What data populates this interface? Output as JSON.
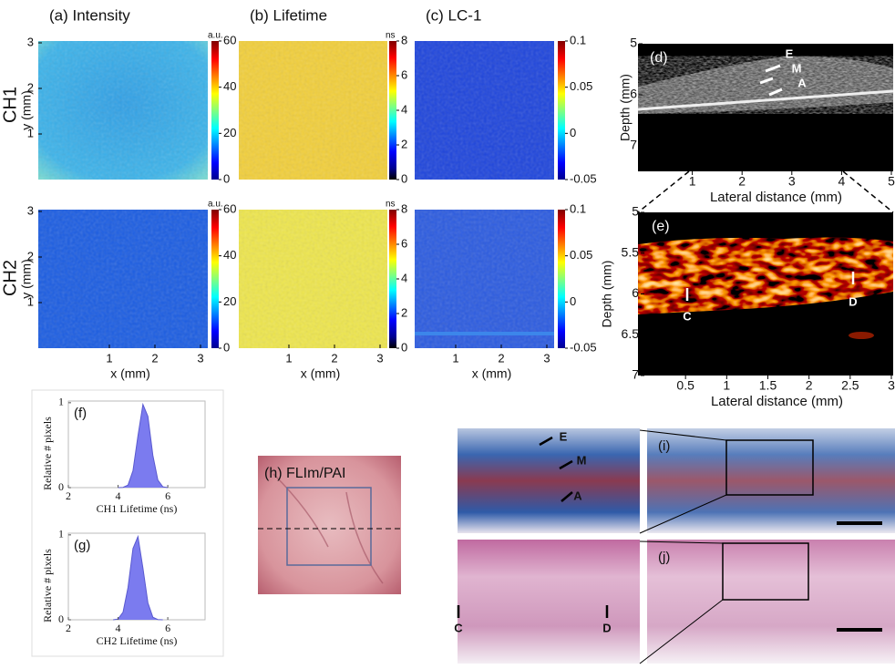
{
  "row_labels": [
    "CH1",
    "CH2"
  ],
  "maps": {
    "xlabel": "x (mm)",
    "ylabel": "y (mm)",
    "ticks": [
      1,
      2,
      3
    ],
    "panels": [
      {
        "title": "(a) Intensity",
        "unit": "a.u.",
        "clim": [
          0,
          60
        ],
        "cticks": [
          0,
          20,
          40,
          60
        ]
      },
      {
        "title": "(b) Lifetime",
        "unit": "ns",
        "clim": [
          0,
          8
        ],
        "cticks": [
          0,
          2,
          4,
          6,
          8
        ]
      },
      {
        "title": "(c) LC-1",
        "clim": [
          -0.05,
          0.1
        ],
        "cticks": [
          -0.05,
          0,
          0.05,
          0.1
        ]
      }
    ]
  },
  "ultrasound": {
    "panel": "(d)",
    "xlabel": "Lateral distance (mm)",
    "ylabel": "Depth (mm)",
    "xlim": [
      0,
      5
    ],
    "ylim": [
      5,
      7.5
    ],
    "xticks": [
      1,
      2,
      3,
      4,
      5
    ],
    "yticks": [
      5,
      6,
      7
    ],
    "markers": [
      "E",
      "M",
      "A"
    ]
  },
  "photoacoustic": {
    "panel": "(e)",
    "xlabel": "Lateral distance (mm)",
    "ylabel": "Depth (mm)",
    "xlim": [
      0,
      3
    ],
    "ylim": [
      5,
      7
    ],
    "xticks": [
      0.5,
      1,
      1.5,
      2,
      2.5,
      3
    ],
    "yticks": [
      5,
      5.5,
      6,
      6.5,
      7
    ],
    "markers": [
      "C",
      "D"
    ]
  },
  "histograms": [
    {
      "panel": "(f)",
      "xlabel": "CH1 Lifetime (ns)",
      "ylabel": "Relative # pixels",
      "xlim": [
        2,
        7.5
      ],
      "ylim": [
        0,
        1.02
      ],
      "xticks": [
        2,
        4,
        6
      ],
      "yticks": [
        0,
        1
      ],
      "x": [
        4.0,
        4.2,
        4.4,
        4.6,
        4.8,
        5.0,
        5.2,
        5.4,
        5.6,
        5.8,
        6.0
      ],
      "values": [
        0,
        0.003,
        0.03,
        0.2,
        0.61,
        0.98,
        0.84,
        0.38,
        0.09,
        0.01,
        0
      ]
    },
    {
      "panel": "(g)",
      "xlabel": "CH2 Lifetime (ns)",
      "ylabel": "Relative # pixels",
      "xlim": [
        2,
        7.5
      ],
      "ylim": [
        0,
        1.02
      ],
      "xticks": [
        2,
        4,
        6
      ],
      "yticks": [
        0,
        1
      ],
      "x": [
        3.8,
        4.0,
        4.2,
        4.4,
        4.6,
        4.8,
        5.0,
        5.2,
        5.4,
        5.6,
        5.8
      ],
      "values": [
        0,
        0.01,
        0.09,
        0.38,
        0.84,
        0.98,
        0.61,
        0.2,
        0.03,
        0.003,
        0
      ]
    }
  ],
  "photo": {
    "label": "(h) FLIm/PAI"
  },
  "histology": {
    "top": {
      "panel": "(i)",
      "markers": [
        "E",
        "M",
        "A"
      ]
    },
    "bottom": {
      "panel": "(j)",
      "markers": [
        "C",
        "D"
      ]
    }
  }
}
